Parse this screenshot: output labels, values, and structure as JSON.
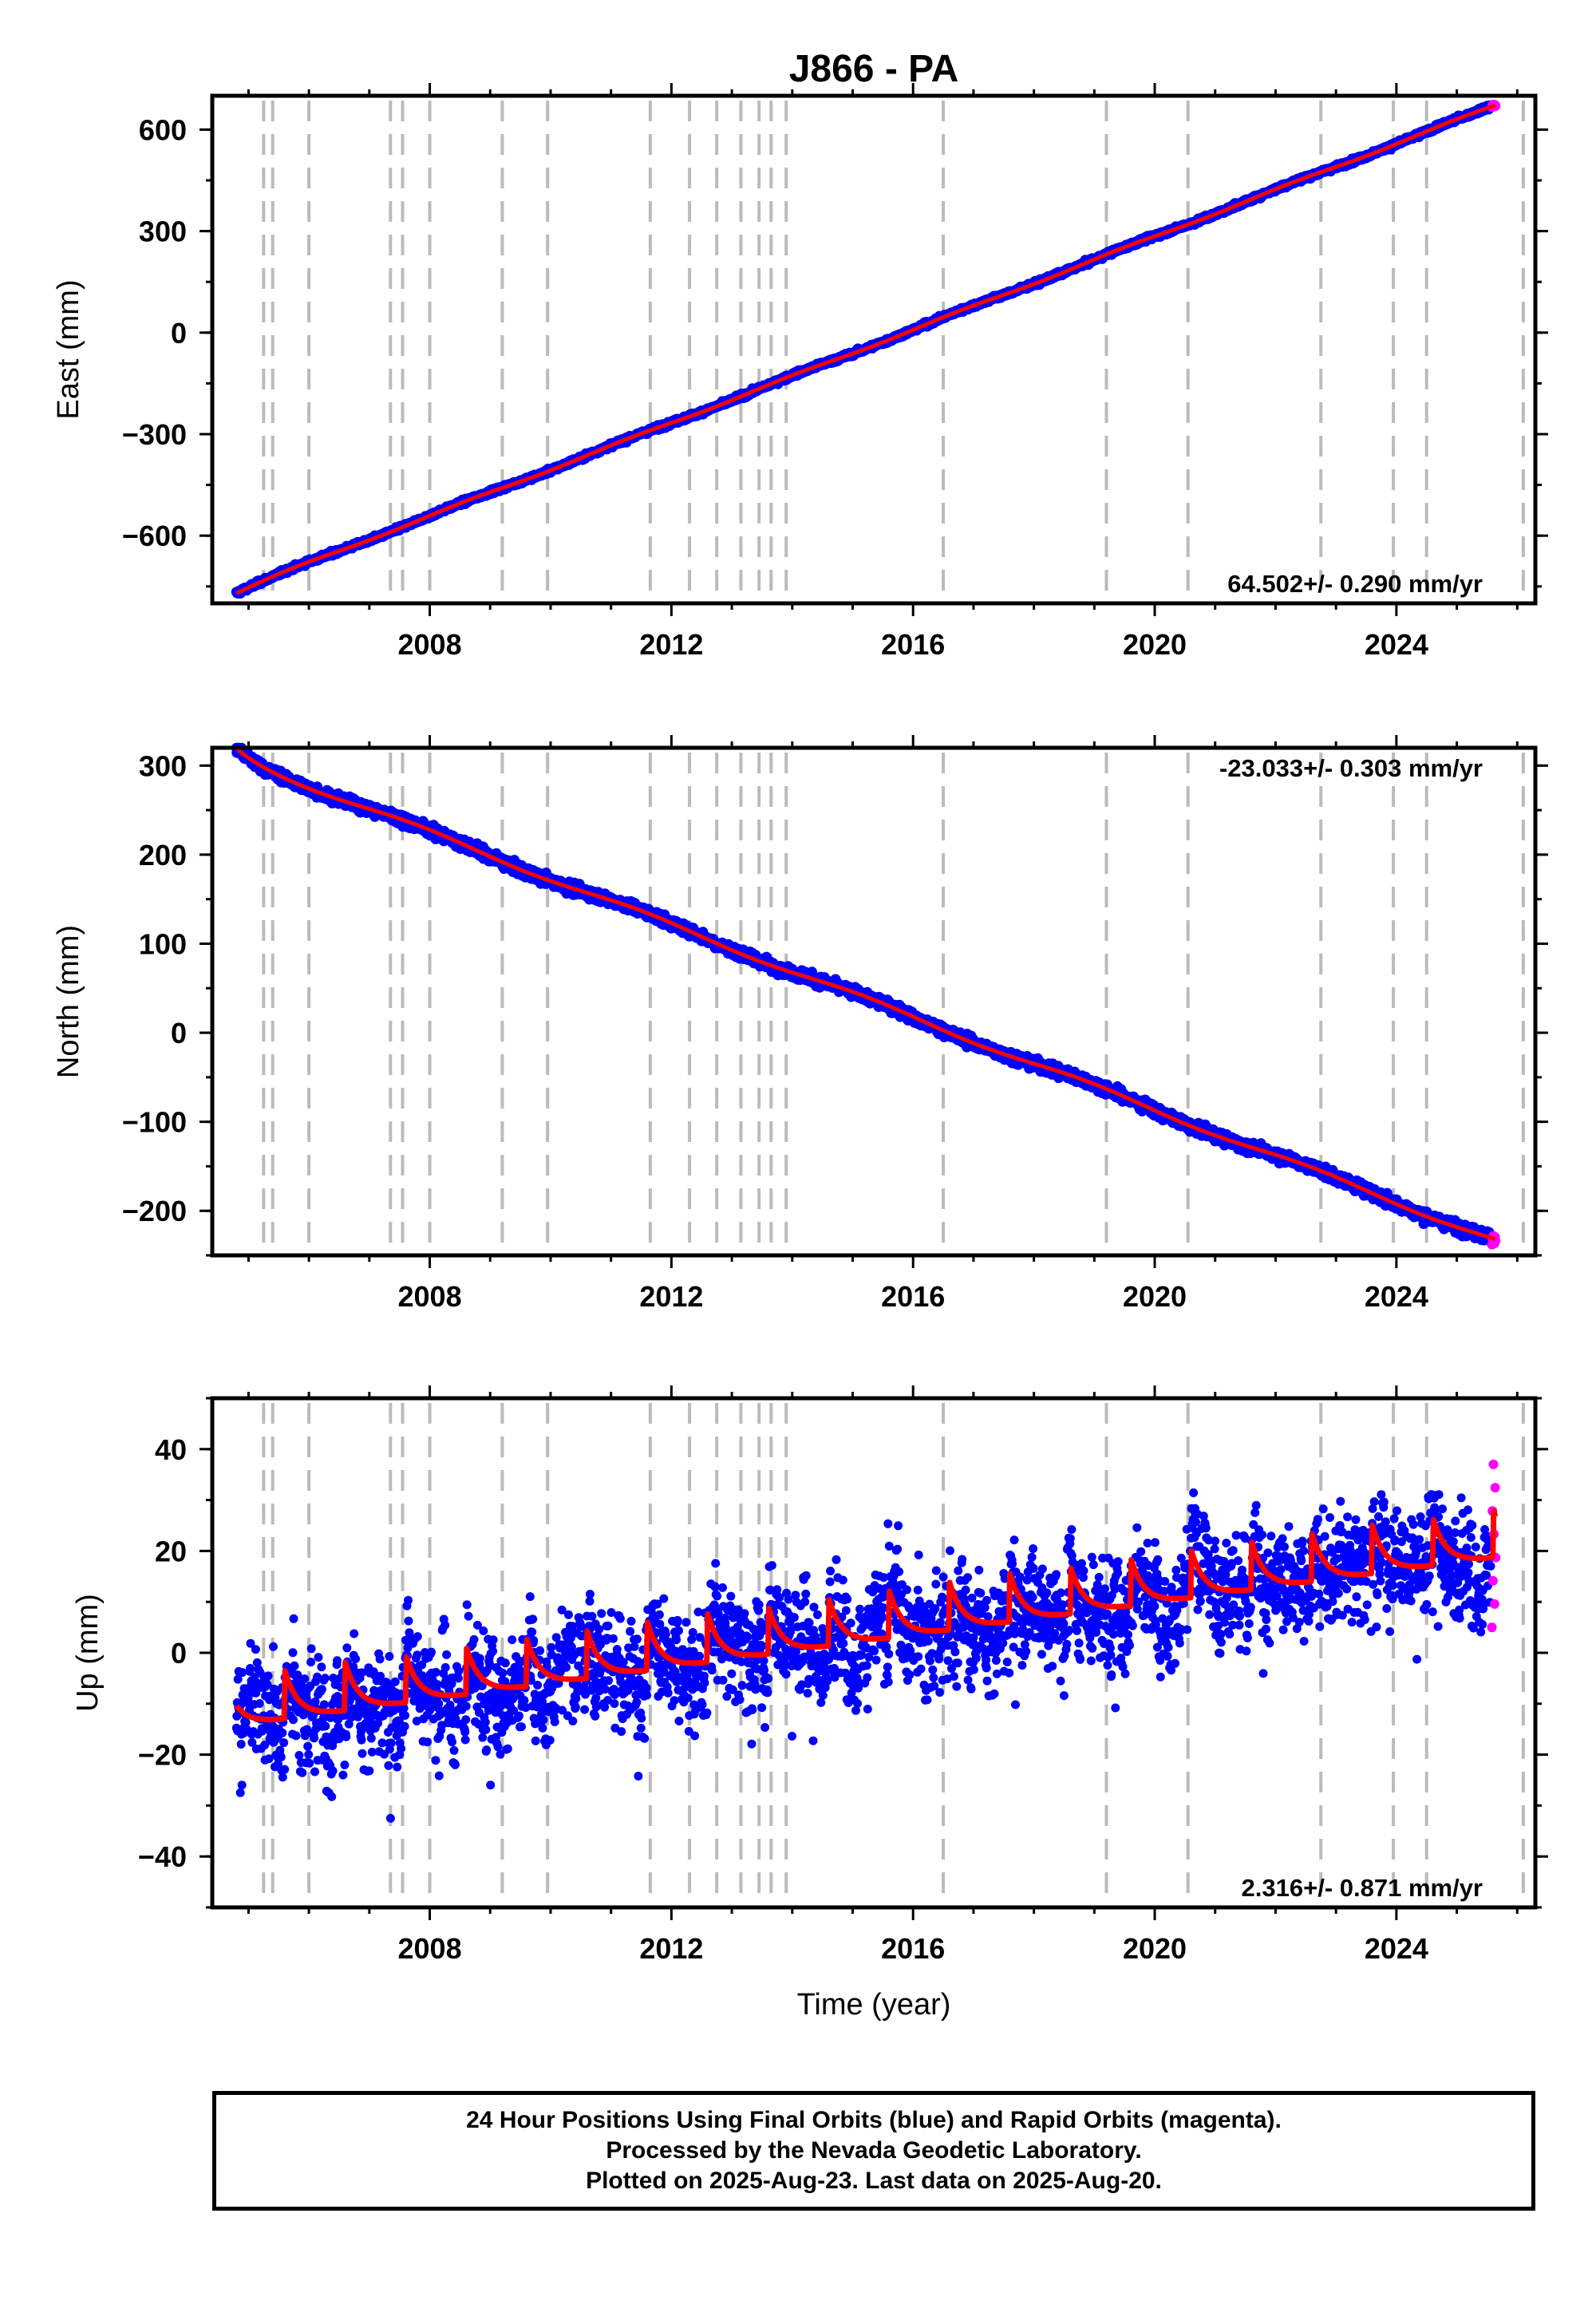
{
  "title": "J866 - PA",
  "colors": {
    "final": "#0000ff",
    "rapid": "#ff00ff",
    "model": "#ff0000",
    "equipment_lines": "#bbbbbb"
  },
  "chart_data": [
    {
      "type": "scatter",
      "component": "east",
      "ylabel": "East (mm)",
      "xlim": [
        2004.4,
        2026.3
      ],
      "ylim": [
        -800,
        700
      ],
      "x_ticks": [
        "2008",
        "2012",
        "2016",
        "2020",
        "2024"
      ],
      "y_ticks": [
        "600",
        "300",
        "0",
        "−300",
        "−600"
      ],
      "rate_label": "64.502+/- 0.290 mm/yr",
      "velocity_mm_yr": 64.502,
      "value_at_start": -762,
      "value_at_end": 672,
      "start_year": 2004.8,
      "end_year": 2025.64,
      "rapid_range": [
        667,
        674
      ]
    },
    {
      "type": "scatter",
      "component": "north",
      "ylabel": "North (mm)",
      "xlim": [
        2004.4,
        2026.3
      ],
      "ylim": [
        -250,
        320
      ],
      "x_ticks": [
        "2008",
        "2012",
        "2016",
        "2020",
        "2024"
      ],
      "y_ticks": [
        "300",
        "200",
        "100",
        "0",
        "−100",
        "−200"
      ],
      "rate_label": "-23.033+/- 0.303 mm/yr",
      "velocity_mm_yr": -23.033,
      "value_at_start": 308,
      "value_at_end": -233,
      "start_year": 2004.8,
      "end_year": 2025.64,
      "rapid_range": [
        -238,
        -228
      ]
    },
    {
      "type": "scatter",
      "component": "up",
      "ylabel": "Up (mm)",
      "xlabel": "Time (year)",
      "xlim": [
        2004.4,
        2026.3
      ],
      "ylim": [
        -50,
        50
      ],
      "x_ticks": [
        "2008",
        "2012",
        "2016",
        "2020",
        "2024"
      ],
      "y_ticks": [
        "40",
        "20",
        "0",
        "−20",
        "−40"
      ],
      "rate_label": "2.316+/- 0.871 mm/yr",
      "velocity_mm_yr": 2.316,
      "value_at_start": -11,
      "value_at_end": 22,
      "start_year": 2004.8,
      "end_year": 2025.64,
      "seasonal_amplitude_mm": 6,
      "rapid_range": [
        5,
        37
      ]
    }
  ],
  "equipment_change_years": [
    2005.25,
    2005.4,
    2006.0,
    2007.35,
    2007.55,
    2008.0,
    2009.2,
    2009.95,
    2011.65,
    2012.3,
    2012.75,
    2013.15,
    2013.45,
    2013.65,
    2013.9,
    2016.5,
    2019.2,
    2020.55,
    2022.75,
    2023.95,
    2024.5,
    2026.1
  ],
  "footer": {
    "line1": "24 Hour Positions Using Final Orbits (blue) and Rapid Orbits (magenta).",
    "line2": "Processed by the Nevada Geodetic Laboratory.",
    "line3": "Plotted on 2025-Aug-23. Last data on 2025-Aug-20."
  }
}
